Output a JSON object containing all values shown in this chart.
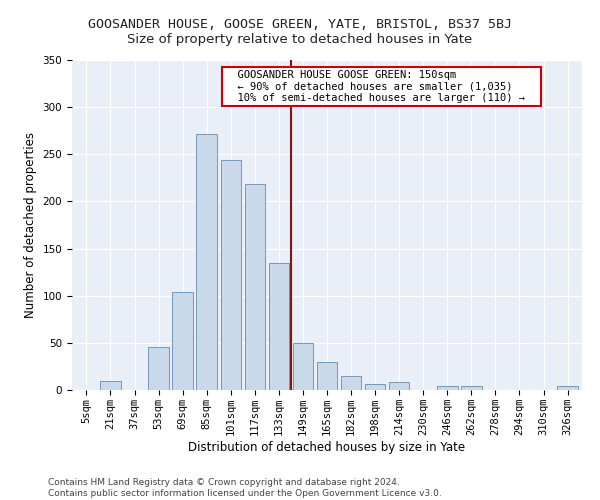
{
  "title": "GOOSANDER HOUSE, GOOSE GREEN, YATE, BRISTOL, BS37 5BJ",
  "subtitle": "Size of property relative to detached houses in Yate",
  "xlabel": "Distribution of detached houses by size in Yate",
  "ylabel": "Number of detached properties",
  "categories": [
    "5sqm",
    "21sqm",
    "37sqm",
    "53sqm",
    "69sqm",
    "85sqm",
    "101sqm",
    "117sqm",
    "133sqm",
    "149sqm",
    "165sqm",
    "182sqm",
    "198sqm",
    "214sqm",
    "230sqm",
    "246sqm",
    "262sqm",
    "278sqm",
    "294sqm",
    "310sqm",
    "326sqm"
  ],
  "values": [
    0,
    10,
    0,
    46,
    104,
    271,
    244,
    219,
    135,
    50,
    30,
    15,
    6,
    9,
    0,
    4,
    4,
    0,
    0,
    0,
    4
  ],
  "bar_color": "#c9d9ea",
  "bar_edge_color": "#7099bb",
  "vline_color": "#8b1010",
  "annotation_text": "  GOOSANDER HOUSE GOOSE GREEN: 150sqm  \n  ← 90% of detached houses are smaller (1,035)  \n  10% of semi-detached houses are larger (110) →  ",
  "annotation_box_color": "#ffffff",
  "annotation_box_edge": "#cc0000",
  "ylim": [
    0,
    350
  ],
  "yticks": [
    0,
    50,
    100,
    150,
    200,
    250,
    300,
    350
  ],
  "background_color": "#eaeff7",
  "footer": "Contains HM Land Registry data © Crown copyright and database right 2024.\nContains public sector information licensed under the Open Government Licence v3.0.",
  "title_fontsize": 9.5,
  "subtitle_fontsize": 9.5,
  "axis_label_fontsize": 8.5,
  "tick_fontsize": 7.5,
  "footer_fontsize": 6.5
}
